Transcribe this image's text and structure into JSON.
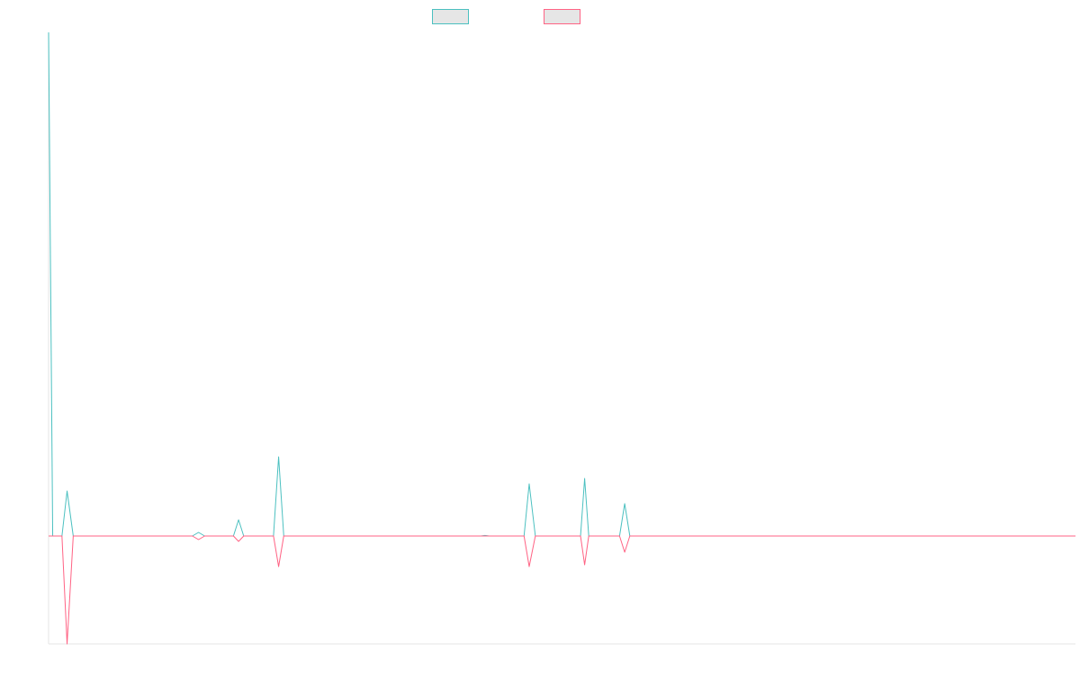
{
  "chart_data": {
    "type": "line",
    "title": "",
    "xlabel": "",
    "ylabel": "",
    "legend_position": "top",
    "grid": false,
    "ylim": [
      -60,
      280
    ],
    "series": [
      {
        "color": "#4bc0c0",
        "legend_fill": "#e6e6e6",
        "points": [
          [
            0.0,
            280
          ],
          [
            0.4,
            0
          ],
          [
            1.3,
            0
          ],
          [
            1.8,
            25
          ],
          [
            2.4,
            0
          ],
          [
            14.0,
            0
          ],
          [
            14.6,
            2
          ],
          [
            15.2,
            0
          ],
          [
            18.0,
            0
          ],
          [
            18.5,
            9
          ],
          [
            19.0,
            0
          ],
          [
            21.9,
            0
          ],
          [
            22.4,
            44
          ],
          [
            22.9,
            0
          ],
          [
            42.1,
            0
          ],
          [
            42.5,
            0.3
          ],
          [
            42.9,
            0
          ],
          [
            46.3,
            0
          ],
          [
            46.8,
            29
          ],
          [
            47.4,
            0
          ],
          [
            51.8,
            0
          ],
          [
            52.2,
            32
          ],
          [
            52.6,
            0
          ],
          [
            55.6,
            0
          ],
          [
            56.1,
            18
          ],
          [
            56.6,
            0
          ],
          [
            100.0,
            0
          ]
        ]
      },
      {
        "color": "#ff6384",
        "legend_fill": "#e6e6e6",
        "points": [
          [
            0.0,
            0
          ],
          [
            1.3,
            0
          ],
          [
            1.8,
            -60
          ],
          [
            2.4,
            0
          ],
          [
            14.0,
            0
          ],
          [
            14.6,
            -2
          ],
          [
            15.2,
            0
          ],
          [
            18.0,
            0
          ],
          [
            18.5,
            -3
          ],
          [
            19.0,
            0
          ],
          [
            21.9,
            0
          ],
          [
            22.4,
            -17
          ],
          [
            22.9,
            0
          ],
          [
            46.3,
            0
          ],
          [
            46.8,
            -17
          ],
          [
            47.4,
            0
          ],
          [
            51.8,
            0
          ],
          [
            52.2,
            -16
          ],
          [
            52.6,
            0
          ],
          [
            55.6,
            0
          ],
          [
            56.1,
            -9
          ],
          [
            56.6,
            0
          ],
          [
            100.0,
            0
          ]
        ]
      }
    ]
  }
}
